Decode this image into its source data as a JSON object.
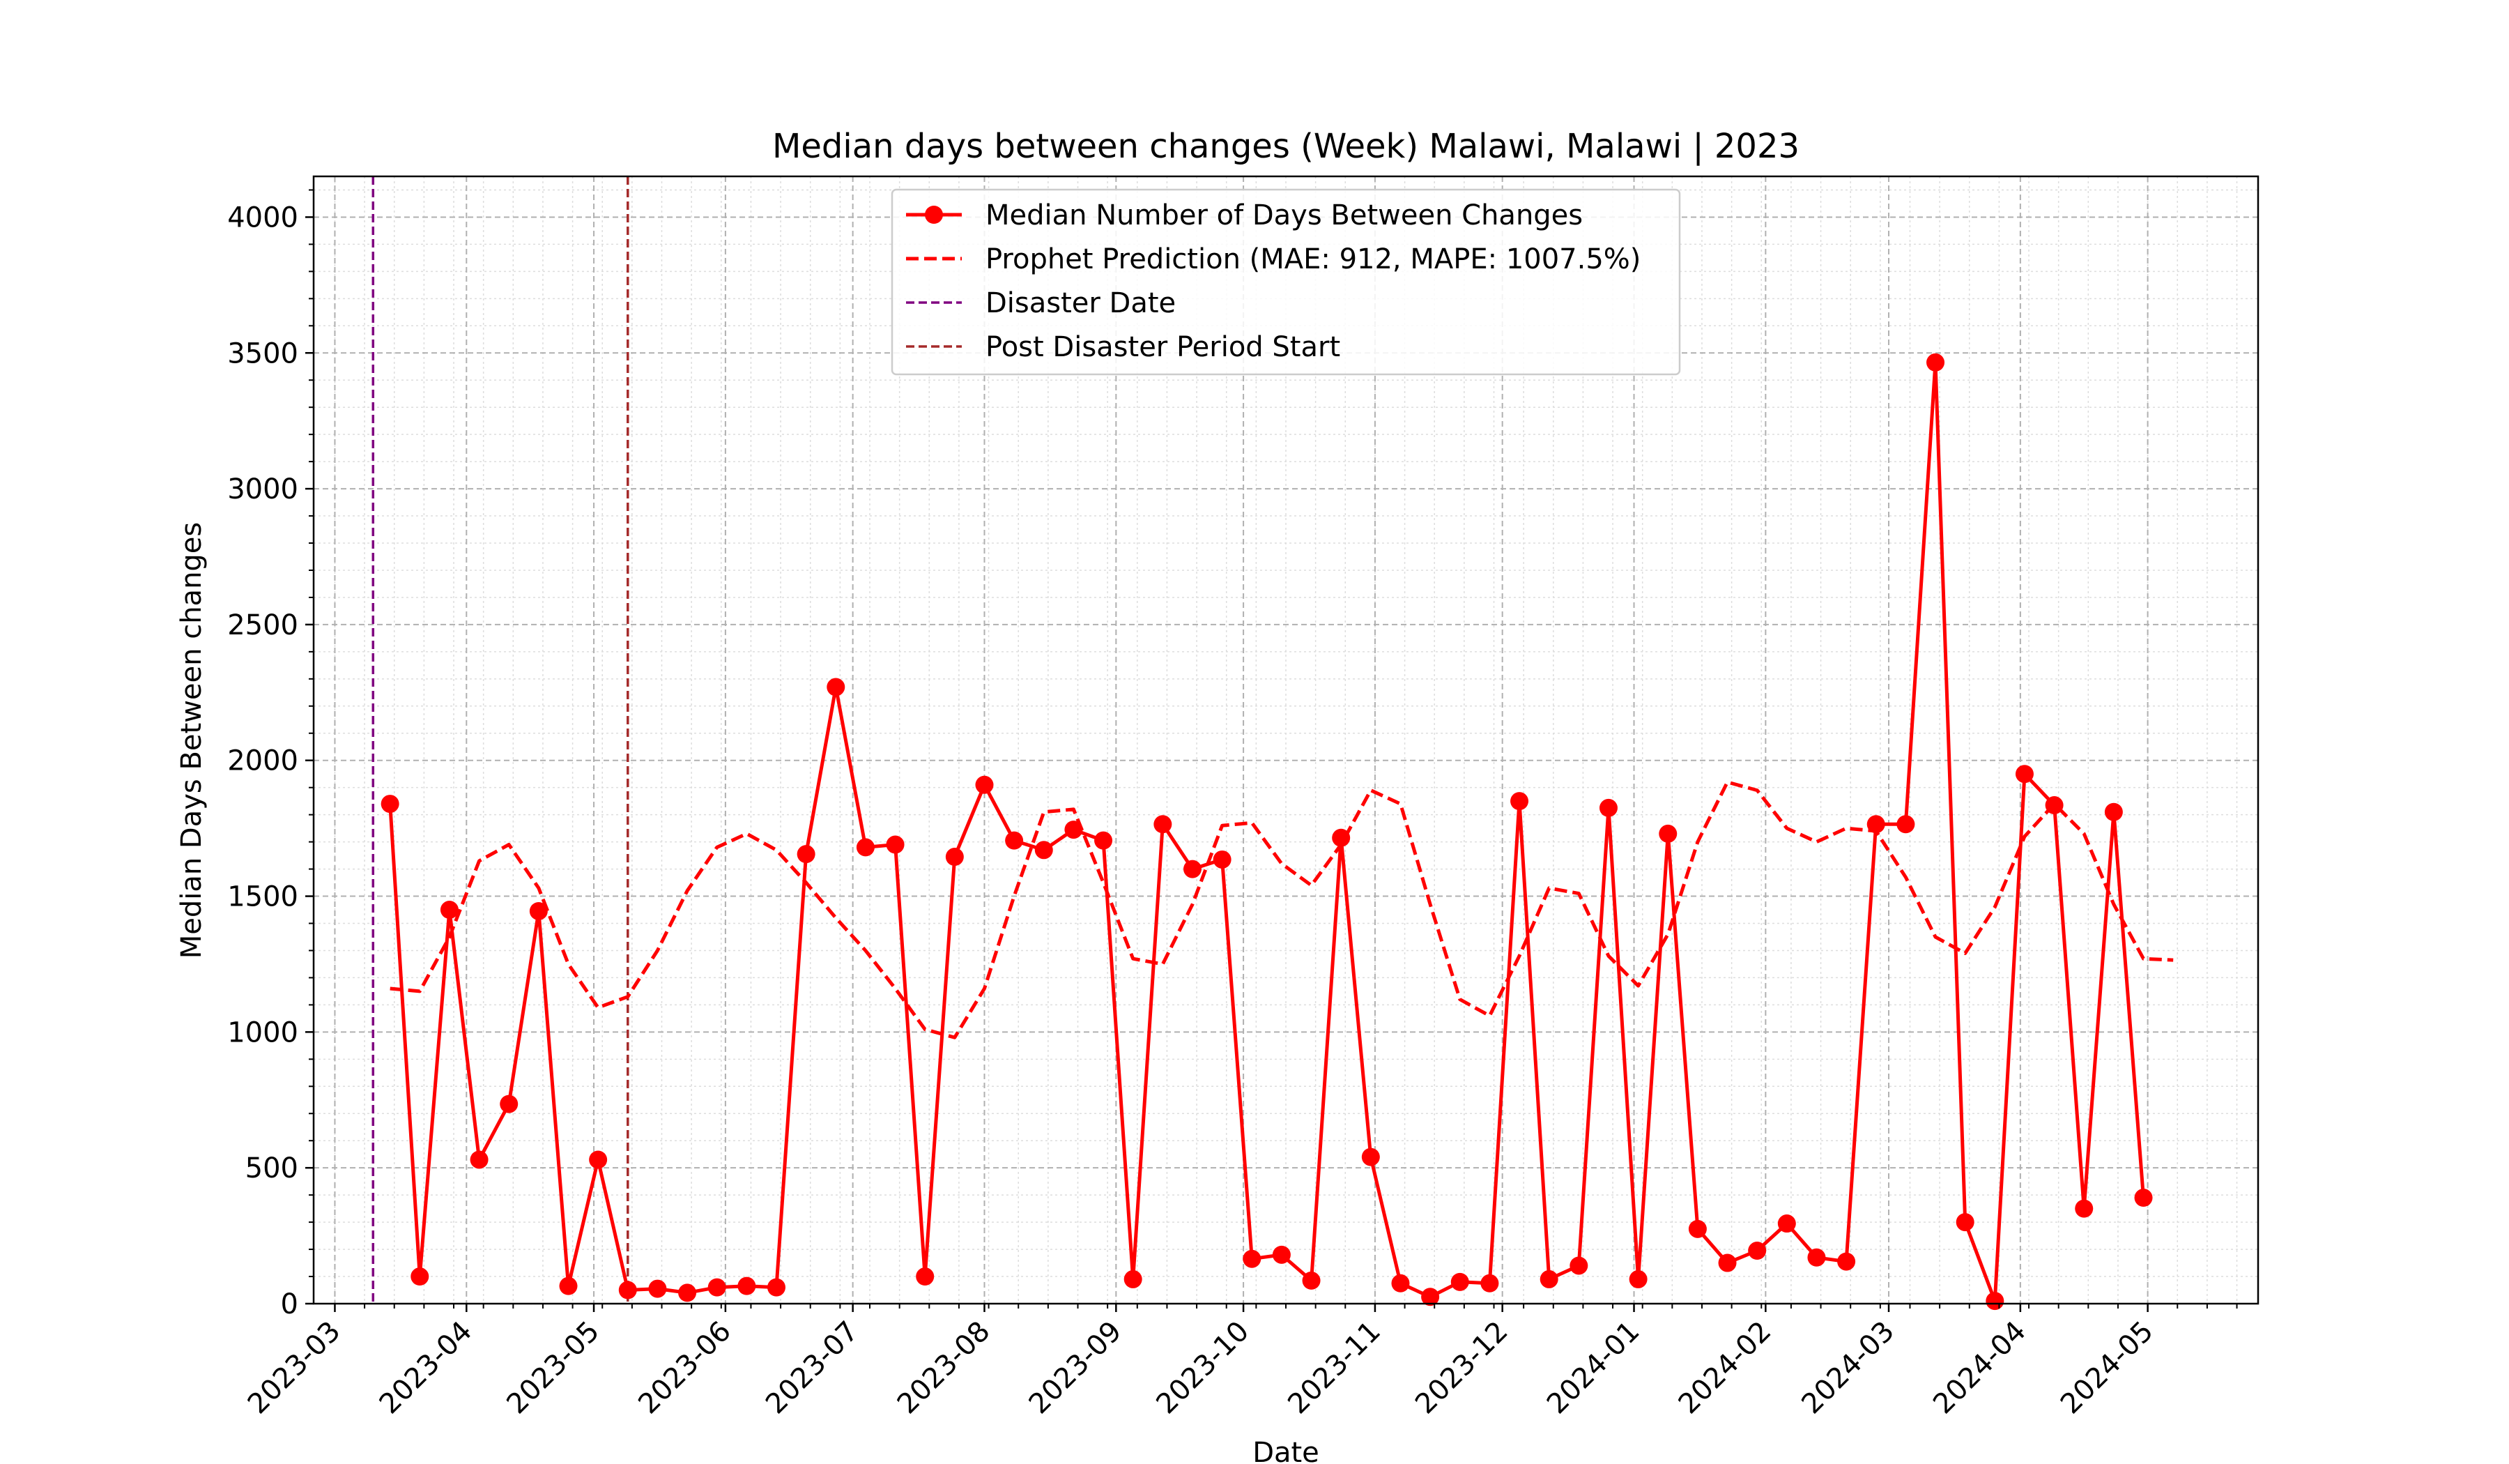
{
  "chart_data": {
    "type": "line",
    "title": "Median days between changes (Week) Malawi, Malawi | 2023",
    "xlabel": "Date",
    "ylabel": "Median Days Between changes",
    "ylim": [
      0,
      4150
    ],
    "xlim": [
      "2023-02-24",
      "2024-05-27"
    ],
    "grid": true,
    "legend_placement": "top-center",
    "y_ticks": [
      0,
      500,
      1000,
      1500,
      2000,
      2500,
      3000,
      3500,
      4000
    ],
    "x_ticks": [
      "2023-03",
      "2023-04",
      "2023-05",
      "2023-06",
      "2023-07",
      "2023-08",
      "2023-09",
      "2023-10",
      "2023-11",
      "2023-12",
      "2024-01",
      "2024-02",
      "2024-03",
      "2024-04",
      "2024-05"
    ],
    "series": [
      {
        "name": "Median Number of Days Between Changes",
        "color": "#ff0000",
        "style": "solid-markers",
        "points": [
          [
            "2023-03-14",
            1840
          ],
          [
            "2023-03-21",
            100
          ],
          [
            "2023-03-28",
            1450
          ],
          [
            "2023-04-04",
            530
          ],
          [
            "2023-04-11",
            735
          ],
          [
            "2023-04-18",
            1445
          ],
          [
            "2023-04-25",
            65
          ],
          [
            "2023-05-02",
            530
          ],
          [
            "2023-05-09",
            50
          ],
          [
            "2023-05-16",
            55
          ],
          [
            "2023-05-23",
            40
          ],
          [
            "2023-05-30",
            60
          ],
          [
            "2023-06-06",
            65
          ],
          [
            "2023-06-13",
            60
          ],
          [
            "2023-06-20",
            1655
          ],
          [
            "2023-06-27",
            2270
          ],
          [
            "2023-07-04",
            1680
          ],
          [
            "2023-07-11",
            1690
          ],
          [
            "2023-07-18",
            100
          ],
          [
            "2023-07-25",
            1645
          ],
          [
            "2023-08-01",
            1910
          ],
          [
            "2023-08-08",
            1705
          ],
          [
            "2023-08-15",
            1670
          ],
          [
            "2023-08-22",
            1745
          ],
          [
            "2023-08-29",
            1705
          ],
          [
            "2023-09-05",
            90
          ],
          [
            "2023-09-12",
            1765
          ],
          [
            "2023-09-19",
            1600
          ],
          [
            "2023-09-26",
            1635
          ],
          [
            "2023-10-03",
            165
          ],
          [
            "2023-10-10",
            180
          ],
          [
            "2023-10-17",
            85
          ],
          [
            "2023-10-24",
            1715
          ],
          [
            "2023-10-31",
            540
          ],
          [
            "2023-11-07",
            75
          ],
          [
            "2023-11-14",
            25
          ],
          [
            "2023-11-21",
            80
          ],
          [
            "2023-11-28",
            75
          ],
          [
            "2023-12-05",
            1850
          ],
          [
            "2023-12-12",
            90
          ],
          [
            "2023-12-19",
            140
          ],
          [
            "2023-12-26",
            1825
          ],
          [
            "2024-01-02",
            90
          ],
          [
            "2024-01-09",
            1730
          ],
          [
            "2024-01-16",
            275
          ],
          [
            "2024-01-23",
            150
          ],
          [
            "2024-01-30",
            195
          ],
          [
            "2024-02-06",
            295
          ],
          [
            "2024-02-13",
            170
          ],
          [
            "2024-02-20",
            155
          ],
          [
            "2024-02-27",
            1765
          ],
          [
            "2024-03-05",
            1765
          ],
          [
            "2024-03-12",
            3465
          ],
          [
            "2024-03-19",
            300
          ],
          [
            "2024-03-26",
            10
          ],
          [
            "2024-04-02",
            1950
          ],
          [
            "2024-04-09",
            1835
          ],
          [
            "2024-04-16",
            350
          ],
          [
            "2024-04-23",
            1810
          ],
          [
            "2024-04-30",
            390
          ]
        ]
      },
      {
        "name": "Prophet Prediction (MAE: 912, MAPE: 1007.5%)",
        "color": "#ff0000",
        "style": "dashed",
        "points": [
          [
            "2023-03-14",
            1160
          ],
          [
            "2023-03-21",
            1150
          ],
          [
            "2023-03-28",
            1350
          ],
          [
            "2023-04-04",
            1630
          ],
          [
            "2023-04-11",
            1690
          ],
          [
            "2023-04-18",
            1530
          ],
          [
            "2023-04-25",
            1250
          ],
          [
            "2023-05-02",
            1090
          ],
          [
            "2023-05-09",
            1130
          ],
          [
            "2023-05-16",
            1300
          ],
          [
            "2023-05-23",
            1520
          ],
          [
            "2023-05-30",
            1680
          ],
          [
            "2023-06-06",
            1730
          ],
          [
            "2023-06-13",
            1670
          ],
          [
            "2023-06-20",
            1550
          ],
          [
            "2023-06-27",
            1420
          ],
          [
            "2023-07-04",
            1300
          ],
          [
            "2023-07-11",
            1160
          ],
          [
            "2023-07-18",
            1010
          ],
          [
            "2023-07-25",
            980
          ],
          [
            "2023-08-01",
            1160
          ],
          [
            "2023-08-08",
            1500
          ],
          [
            "2023-08-15",
            1810
          ],
          [
            "2023-08-22",
            1820
          ],
          [
            "2023-08-29",
            1550
          ],
          [
            "2023-09-05",
            1270
          ],
          [
            "2023-09-12",
            1250
          ],
          [
            "2023-09-19",
            1470
          ],
          [
            "2023-09-26",
            1760
          ],
          [
            "2023-10-03",
            1770
          ],
          [
            "2023-10-10",
            1620
          ],
          [
            "2023-10-17",
            1540
          ],
          [
            "2023-10-24",
            1690
          ],
          [
            "2023-10-31",
            1890
          ],
          [
            "2023-11-07",
            1840
          ],
          [
            "2023-11-14",
            1470
          ],
          [
            "2023-11-21",
            1120
          ],
          [
            "2023-11-28",
            1060
          ],
          [
            "2023-12-05",
            1280
          ],
          [
            "2023-12-12",
            1530
          ],
          [
            "2023-12-19",
            1510
          ],
          [
            "2023-12-26",
            1280
          ],
          [
            "2024-01-02",
            1170
          ],
          [
            "2024-01-09",
            1360
          ],
          [
            "2024-01-16",
            1700
          ],
          [
            "2024-01-23",
            1920
          ],
          [
            "2024-01-30",
            1890
          ],
          [
            "2024-02-06",
            1750
          ],
          [
            "2024-02-13",
            1700
          ],
          [
            "2024-02-20",
            1750
          ],
          [
            "2024-02-27",
            1740
          ],
          [
            "2024-03-05",
            1570
          ],
          [
            "2024-03-12",
            1350
          ],
          [
            "2024-03-19",
            1290
          ],
          [
            "2024-03-26",
            1460
          ],
          [
            "2024-04-02",
            1720
          ],
          [
            "2024-04-09",
            1840
          ],
          [
            "2024-04-16",
            1730
          ],
          [
            "2024-04-23",
            1470
          ],
          [
            "2024-04-30",
            1270
          ],
          [
            "2024-05-07",
            1265
          ]
        ]
      }
    ],
    "vlines": [
      {
        "name": "Disaster Date",
        "date": "2023-03-10",
        "color": "#800080"
      },
      {
        "name": "Post Disaster Period Start",
        "date": "2023-05-09",
        "color": "#a52a2a"
      }
    ]
  }
}
